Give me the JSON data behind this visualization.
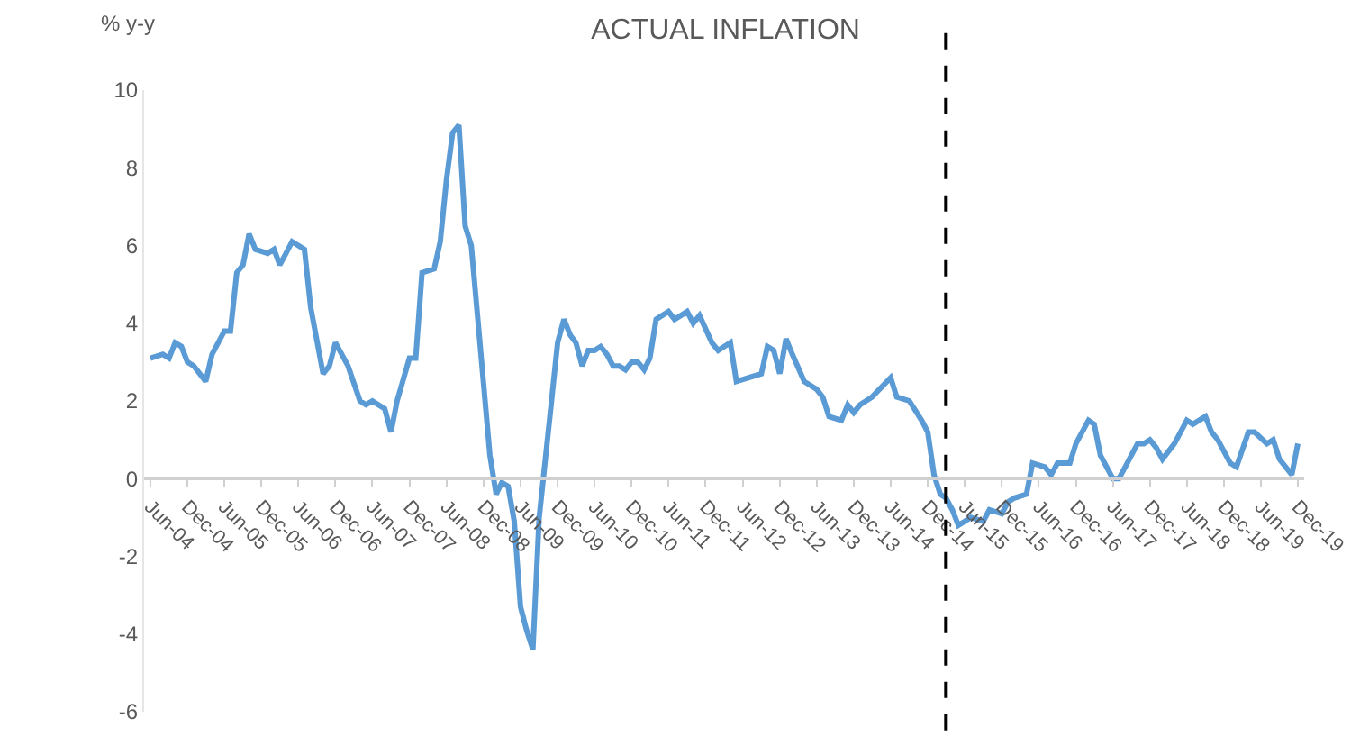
{
  "chart_data": {
    "type": "line",
    "title": "ACTUAL INFLATION",
    "ylabel": "% y-y",
    "x": [
      "2004-06",
      "2004-08",
      "2004-09",
      "2004-10",
      "2004-11",
      "2004-12",
      "2005-01",
      "2005-03",
      "2005-04",
      "2005-06",
      "2005-07",
      "2005-08",
      "2005-09",
      "2005-10",
      "2005-11",
      "2006-01",
      "2006-02",
      "2006-03",
      "2006-04",
      "2006-05",
      "2006-07",
      "2006-08",
      "2006-10",
      "2006-11",
      "2006-12",
      "2007-02",
      "2007-04",
      "2007-05",
      "2007-06",
      "2007-08",
      "2007-09",
      "2007-10",
      "2007-12",
      "2008-01",
      "2008-02",
      "2008-04",
      "2008-05",
      "2008-06",
      "2008-07",
      "2008-08",
      "2008-09",
      "2008-10",
      "2009-01",
      "2009-02",
      "2009-03",
      "2009-04",
      "2009-05",
      "2009-06",
      "2009-07",
      "2009-08",
      "2009-09",
      "2009-11",
      "2009-12",
      "2010-01",
      "2010-02",
      "2010-03",
      "2010-04",
      "2010-05",
      "2010-06",
      "2010-07",
      "2010-08",
      "2010-09",
      "2010-10",
      "2010-11",
      "2010-12",
      "2011-01",
      "2011-02",
      "2011-03",
      "2011-04",
      "2011-06",
      "2011-07",
      "2011-09",
      "2011-10",
      "2011-11",
      "2012-01",
      "2012-02",
      "2012-04",
      "2012-05",
      "2012-07",
      "2012-09",
      "2012-10",
      "2012-11",
      "2012-12",
      "2013-01",
      "2013-02",
      "2013-04",
      "2013-06",
      "2013-07",
      "2013-08",
      "2013-10",
      "2013-11",
      "2013-12",
      "2014-01",
      "2014-03",
      "2014-06",
      "2014-07",
      "2014-09",
      "2014-11",
      "2014-12",
      "2015-01",
      "2015-02",
      "2015-03",
      "2015-04",
      "2015-05",
      "2015-06",
      "2015-07",
      "2015-09",
      "2015-10",
      "2015-12",
      "2016-01",
      "2016-02",
      "2016-04",
      "2016-05",
      "2016-07",
      "2016-08",
      "2016-09",
      "2016-11",
      "2016-12",
      "2017-02",
      "2017-03",
      "2017-04",
      "2017-06",
      "2017-07",
      "2017-08",
      "2017-10",
      "2017-11",
      "2017-12",
      "2018-01",
      "2018-02",
      "2018-04",
      "2018-06",
      "2018-07",
      "2018-09",
      "2018-10",
      "2018-11",
      "2019-01",
      "2019-02",
      "2019-04",
      "2019-05",
      "2019-07",
      "2019-08",
      "2019-09",
      "2019-11",
      "2019-12"
    ],
    "series": [
      {
        "color": "#5b9bd5",
        "values": [
          3.1,
          3.2,
          3.1,
          3.5,
          3.4,
          3.0,
          2.9,
          2.5,
          3.2,
          3.8,
          3.8,
          5.3,
          5.5,
          6.3,
          5.9,
          5.8,
          5.9,
          5.5,
          5.8,
          6.1,
          5.9,
          4.4,
          2.7,
          2.9,
          3.5,
          2.9,
          2.0,
          1.9,
          2.0,
          1.8,
          1.2,
          2.0,
          3.1,
          3.1,
          5.3,
          5.4,
          6.1,
          7.7,
          8.9,
          9.1,
          6.5,
          6.0,
          0.6,
          -0.4,
          -0.1,
          -0.2,
          -1.1,
          -3.3,
          -3.9,
          -4.4,
          -1.0,
          2.0,
          3.5,
          4.1,
          3.7,
          3.5,
          2.9,
          3.3,
          3.3,
          3.4,
          3.2,
          2.9,
          2.9,
          2.8,
          3.0,
          3.0,
          2.8,
          3.1,
          4.1,
          4.3,
          4.1,
          4.3,
          4.0,
          4.2,
          3.5,
          3.3,
          3.5,
          2.5,
          2.6,
          2.7,
          3.4,
          3.3,
          2.7,
          3.6,
          3.2,
          2.5,
          2.3,
          2.1,
          1.6,
          1.5,
          1.9,
          1.7,
          1.9,
          2.1,
          2.6,
          2.1,
          2.0,
          1.5,
          1.2,
          0.1,
          -0.4,
          -0.5,
          -0.8,
          -1.2,
          -1.1,
          -1.0,
          -1.1,
          -0.8,
          -0.9,
          -0.6,
          -0.5,
          -0.4,
          0.4,
          0.3,
          0.1,
          0.4,
          0.4,
          0.9,
          1.5,
          1.4,
          0.6,
          0.0,
          0.0,
          0.3,
          0.9,
          0.9,
          1.0,
          0.8,
          0.5,
          0.9,
          1.5,
          1.4,
          1.6,
          1.2,
          1.0,
          0.4,
          0.3,
          1.2,
          1.2,
          0.9,
          1.0,
          0.5,
          0.1,
          0.9
        ]
      }
    ],
    "xlim": [
      "2004-05",
      "2020-01"
    ],
    "xticks": [
      {
        "value": "2004-06",
        "label": "Jun-04"
      },
      {
        "value": "2004-12",
        "label": "Dec-04"
      },
      {
        "value": "2005-06",
        "label": "Jun-05"
      },
      {
        "value": "2005-12",
        "label": "Dec-05"
      },
      {
        "value": "2006-06",
        "label": "Jun-06"
      },
      {
        "value": "2006-12",
        "label": "Dec-06"
      },
      {
        "value": "2007-06",
        "label": "Jun-07"
      },
      {
        "value": "2007-12",
        "label": "Dec-07"
      },
      {
        "value": "2008-06",
        "label": "Jun-08"
      },
      {
        "value": "2008-12",
        "label": "Dec-08"
      },
      {
        "value": "2009-06",
        "label": "Jun-09"
      },
      {
        "value": "2009-12",
        "label": "Dec-09"
      },
      {
        "value": "2010-06",
        "label": "Jun-10"
      },
      {
        "value": "2010-12",
        "label": "Dec-10"
      },
      {
        "value": "2011-06",
        "label": "Jun-11"
      },
      {
        "value": "2011-12",
        "label": "Dec-11"
      },
      {
        "value": "2012-06",
        "label": "Jun-12"
      },
      {
        "value": "2012-12",
        "label": "Dec-12"
      },
      {
        "value": "2013-06",
        "label": "Jun-13"
      },
      {
        "value": "2013-12",
        "label": "Dec-13"
      },
      {
        "value": "2014-06",
        "label": "Jun-14"
      },
      {
        "value": "2014-12",
        "label": "Dec-14"
      },
      {
        "value": "2015-06",
        "label": "Jun-15"
      },
      {
        "value": "2015-12",
        "label": "Dec-15"
      },
      {
        "value": "2016-06",
        "label": "Jun-16"
      },
      {
        "value": "2016-12",
        "label": "Dec-16"
      },
      {
        "value": "2017-06",
        "label": "Jun-17"
      },
      {
        "value": "2017-12",
        "label": "Dec-17"
      },
      {
        "value": "2018-06",
        "label": "Jun-18"
      },
      {
        "value": "2018-12",
        "label": "Dec-18"
      },
      {
        "value": "2019-06",
        "label": "Jun-19"
      },
      {
        "value": "2019-12",
        "label": "Dec-19"
      }
    ],
    "ylim": [
      -6,
      10
    ],
    "yticks": [
      -6,
      -4,
      -2,
      0,
      2,
      4,
      6,
      8,
      10
    ],
    "ref_lines": [
      {
        "axis": "x",
        "value": "2015-03",
        "color": "#000000",
        "line_style": "dashed"
      }
    ],
    "legend": false,
    "marker": "none",
    "line_style": "solid"
  }
}
